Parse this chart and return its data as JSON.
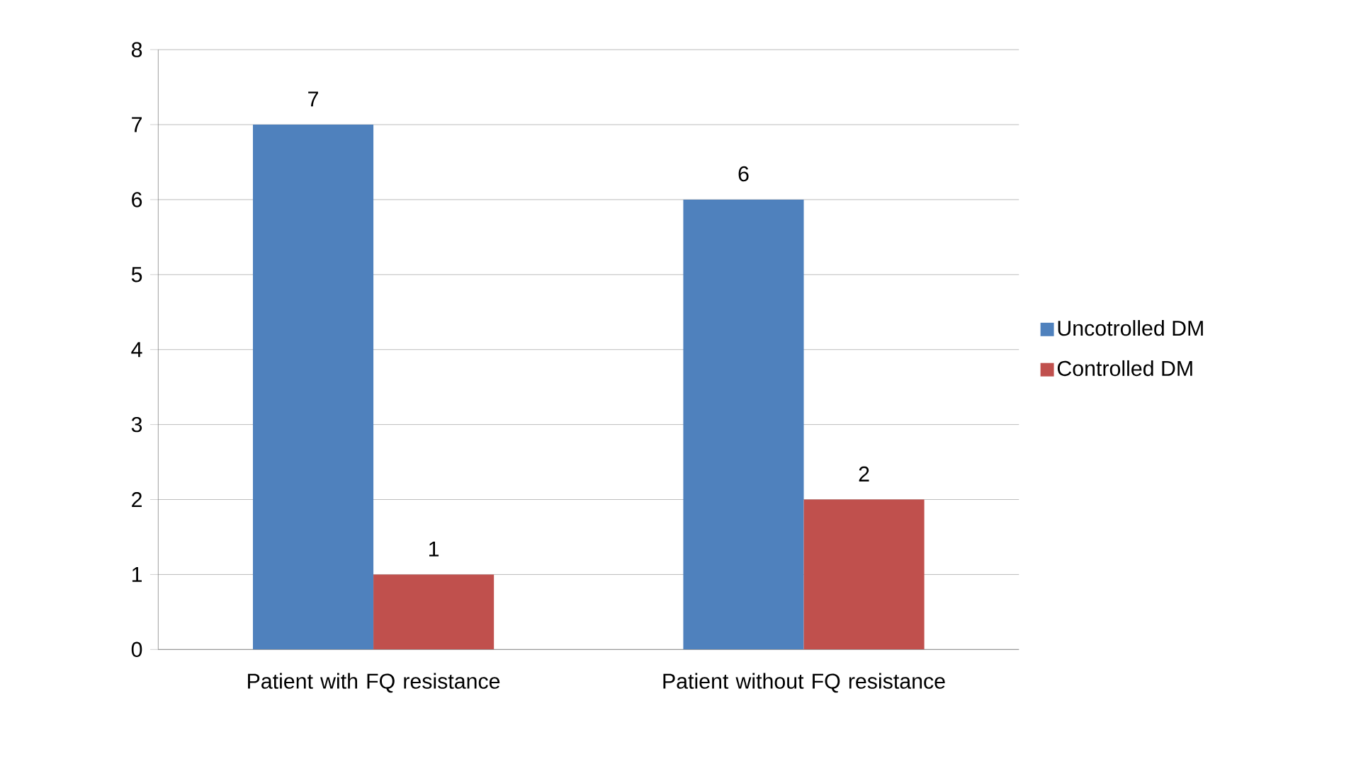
{
  "chart_data": {
    "type": "bar",
    "categories": [
      "Patient with FQ resistance",
      "Patient without FQ resistance"
    ],
    "series": [
      {
        "name": "Uncotrolled DM",
        "color": "#4f81bd",
        "values": [
          7,
          6
        ]
      },
      {
        "name": "Controlled DM",
        "color": "#c0504d",
        "values": [
          1,
          2
        ]
      }
    ],
    "ylim": [
      0,
      8
    ],
    "yticks": [
      0,
      1,
      2,
      3,
      4,
      5,
      6,
      7,
      8
    ],
    "grid": "y",
    "legend": "right",
    "data_labels": true
  }
}
